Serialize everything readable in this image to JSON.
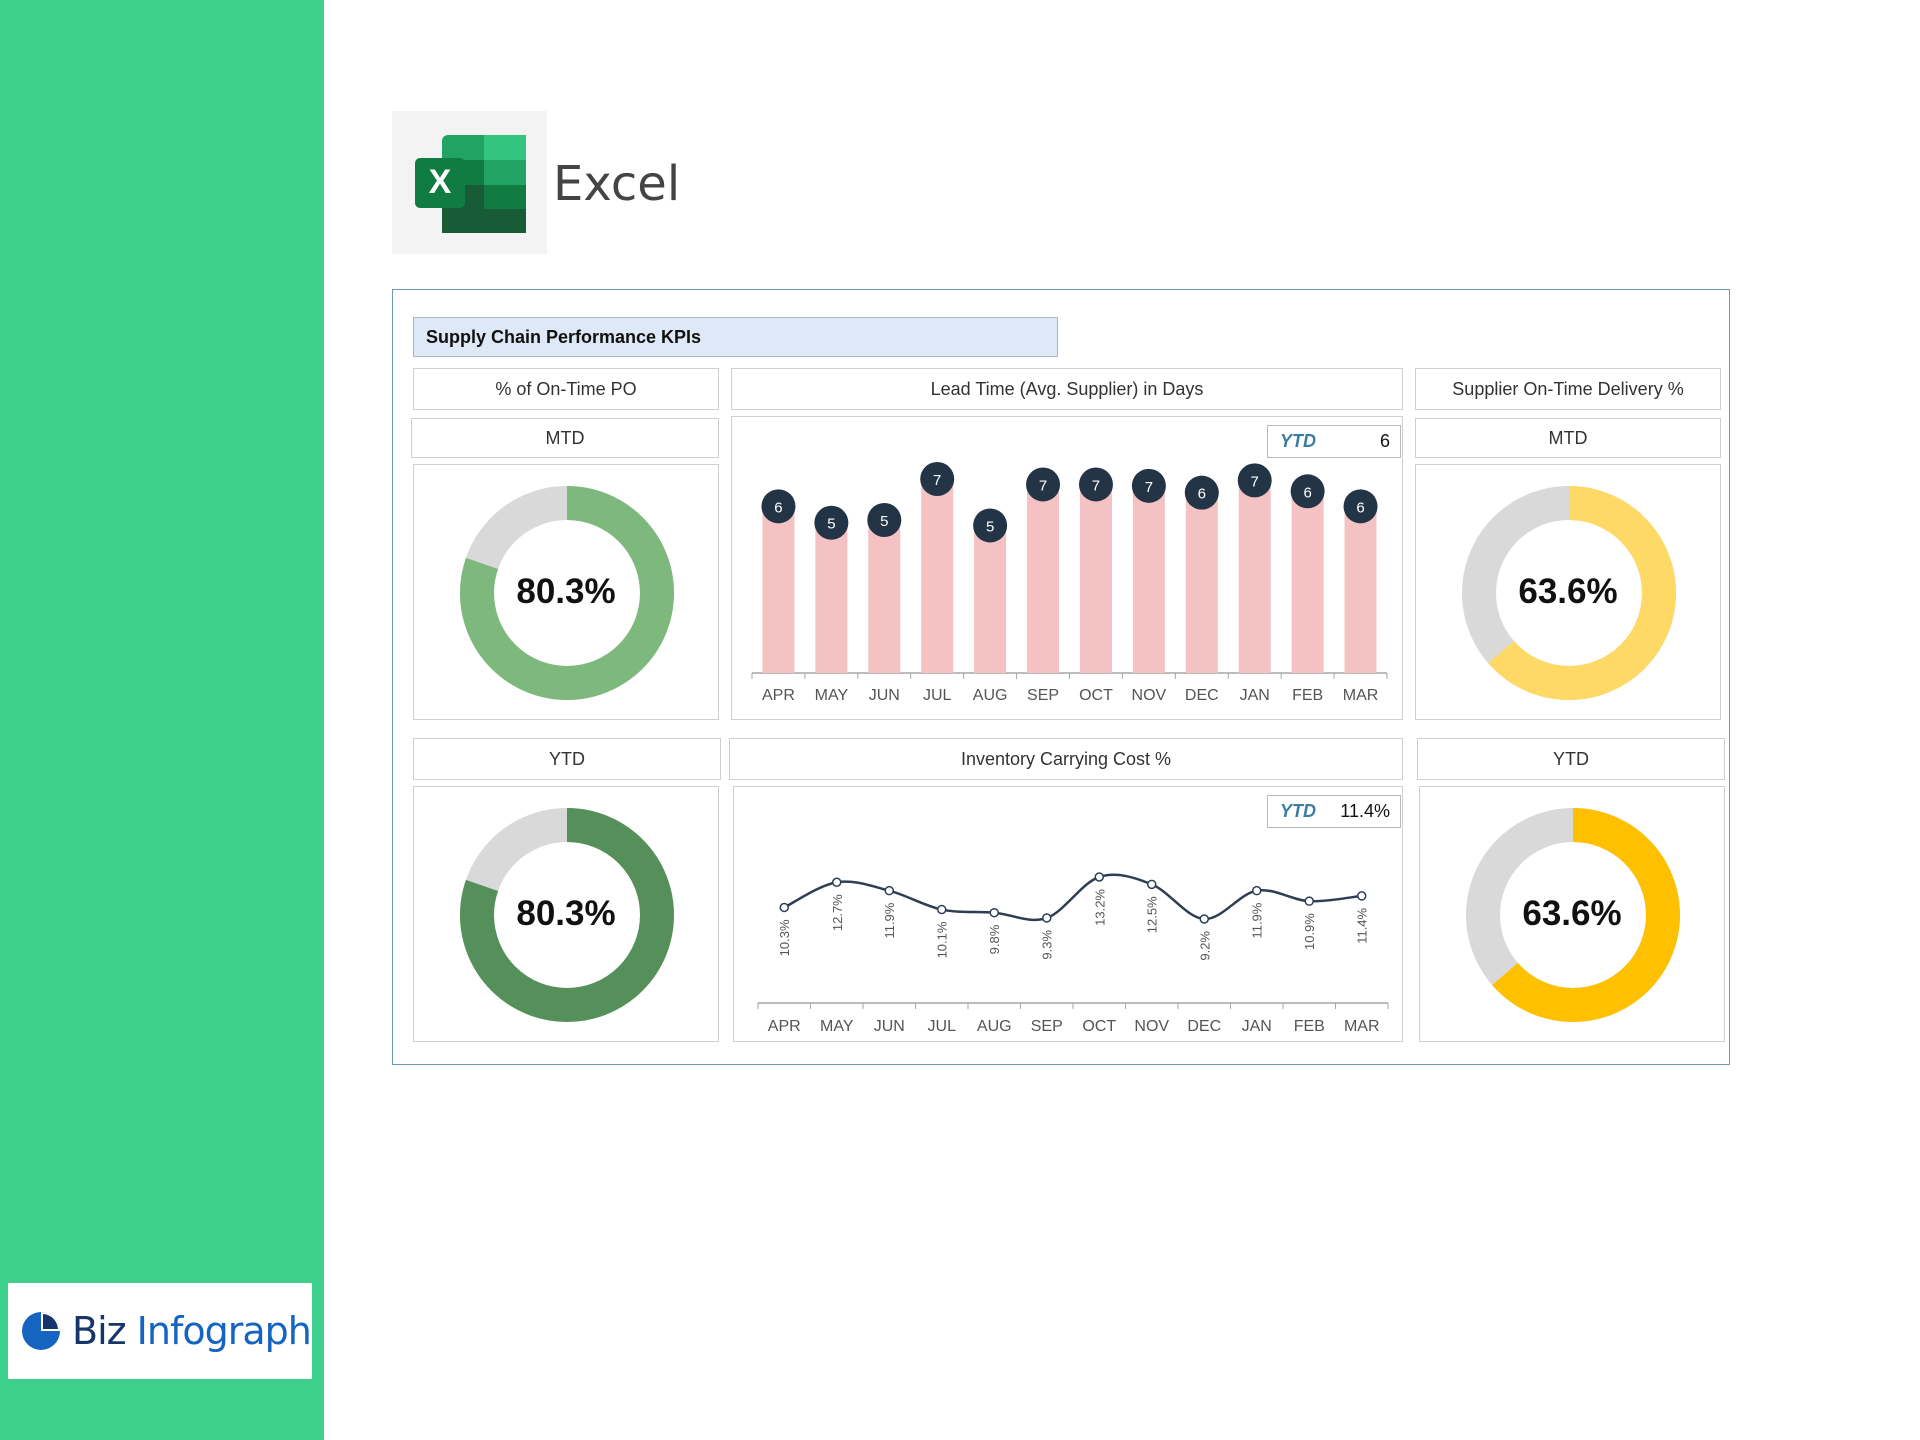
{
  "app": {
    "label": "Excel"
  },
  "brand": {
    "part1": "Biz",
    "part2": "Infograph"
  },
  "dashboard": {
    "title": "Supply Chain Performance KPIs",
    "on_time_po": {
      "header": "% of On-Time PO",
      "mtd": {
        "label": "MTD",
        "value_text": "80.3%",
        "value": 80.3,
        "color": "#7db87d"
      },
      "ytd": {
        "label": "YTD",
        "value_text": "80.3%",
        "value": 80.3,
        "color": "#55905a"
      }
    },
    "supplier_delivery": {
      "header": "Supplier On-Time Delivery %",
      "mtd": {
        "label": "MTD",
        "value_text": "63.6%",
        "value": 63.6,
        "color": "#ffd966"
      },
      "ytd": {
        "label": "YTD",
        "value_text": "63.6%",
        "value": 63.6,
        "color": "#ffc000"
      }
    },
    "track_color": "#d9d9d9",
    "lead_time": {
      "header": "Lead Time (Avg. Supplier) in Days",
      "ytd_label": "YTD",
      "ytd_value": "6"
    },
    "inventory_cost": {
      "header": "Inventory Carrying Cost %",
      "ytd_label": "YTD",
      "ytd_value": "11.4%"
    }
  },
  "chart_data": [
    {
      "type": "bar",
      "categories": [
        "APR",
        "MAY",
        "JUN",
        "JUL",
        "AUG",
        "SEP",
        "OCT",
        "NOV",
        "DEC",
        "JAN",
        "FEB",
        "MAR"
      ],
      "values": [
        6,
        5,
        5,
        7,
        5,
        7,
        7,
        7,
        6,
        7,
        6,
        6
      ],
      "value_labels": [
        "6",
        "5",
        "5",
        "7",
        "5",
        "7",
        "7",
        "7",
        "6",
        "7",
        "6",
        "6"
      ],
      "heights": [
        6.1,
        5.5,
        5.6,
        7.1,
        5.4,
        6.9,
        6.9,
        6.85,
        6.6,
        7.05,
        6.65,
        6.1
      ],
      "color": "#f4c2c2",
      "label_bubble_color": "#243447",
      "grid": false
    },
    {
      "type": "line",
      "categories": [
        "APR",
        "MAY",
        "JUN",
        "JUL",
        "AUG",
        "SEP",
        "OCT",
        "NOV",
        "DEC",
        "JAN",
        "FEB",
        "MAR"
      ],
      "values": [
        10.3,
        12.7,
        11.9,
        10.1,
        9.8,
        9.3,
        13.2,
        12.5,
        9.2,
        11.9,
        10.9,
        11.4
      ],
      "value_labels": [
        "10.3%",
        "12.7%",
        "11.9%",
        "10.1%",
        "9.8%",
        "9.3%",
        "13.2%",
        "12.5%",
        "9.2%",
        "11.9%",
        "10.9%",
        "11.4%"
      ],
      "color": "#2f3e54",
      "grid": false
    }
  ]
}
